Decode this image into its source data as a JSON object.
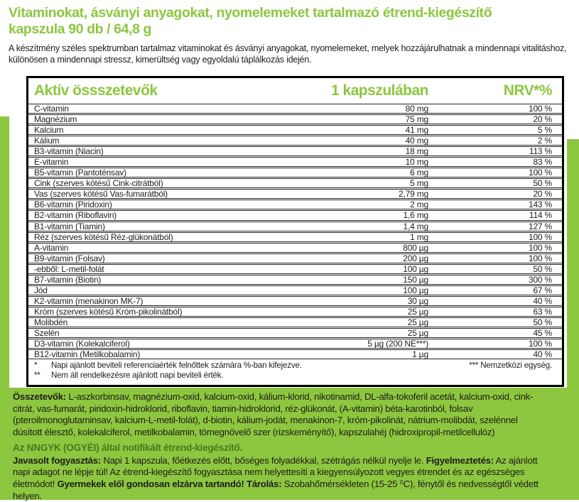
{
  "colors": {
    "green": "#8dc63f",
    "dark_green": "#47791f",
    "text": "#1d1d1b"
  },
  "header": {
    "title_line1": "Vitaminokat, ásványi anyagokat, nyomelemeket tartalmazó étrend-kiegészítő",
    "title_line2": "kapszula 90 db /  64,8 g",
    "description": "A készítmény széles spektrumban tartalmaz vitaminokat és ásványi anyagokat, nyomelemeket, melyek hozzájárulhatnak a mindennapi vitalitáshoz, különösen a mindennapi stressz, kimerültség vagy egyoldalú táplálkozás idején."
  },
  "table": {
    "col_ingredient": "Aktív össszetevők",
    "col_per_capsule": "1 kapszulában",
    "col_nrv": "NRV*%",
    "rows": [
      {
        "name": "C-vitamin",
        "amount": "80 mg",
        "nrv": "100 %"
      },
      {
        "name": "Magnézium",
        "amount": "75 mg",
        "nrv": "20 %"
      },
      {
        "name": "Kalcium",
        "amount": "41 mg",
        "nrv": "5 %"
      },
      {
        "name": "Kálium",
        "amount": "40 mg",
        "nrv": "2 %"
      },
      {
        "name": "B3-vitamin (Niacin)",
        "amount": "18 mg",
        "nrv": "113 %"
      },
      {
        "name": "E-vitamin",
        "amount": "10 mg",
        "nrv": "83 %"
      },
      {
        "name": "B5-vitamin (Pantoténsav)",
        "amount": "6 mg",
        "nrv": "100 %"
      },
      {
        "name": "Cink (szerves kötésű Cink-citrátból)",
        "amount": "5 mg",
        "nrv": "50 %"
      },
      {
        "name": "Vas (szerves kötésű Vas-fumarátból)",
        "amount": "2,79 mg",
        "nrv": "20 %"
      },
      {
        "name": "B6-vitamin (Piridoxin)",
        "amount": "2 mg",
        "nrv": "143 %"
      },
      {
        "name": "B2-vitamin (Riboflavin)",
        "amount": "1,6 mg",
        "nrv": "114 %"
      },
      {
        "name": "B1-vitamin (Tiamin)",
        "amount": "1,4 mg",
        "nrv": "127 %"
      },
      {
        "name": "Réz (szerves kötésű Réz-glükonátból)",
        "amount": "1 mg",
        "nrv": "100 %"
      },
      {
        "name": "A-vitamin",
        "amount": "800 µg",
        "nrv": "100 %"
      },
      {
        "name": "B9-vitamin (Folsav)",
        "amount": "200 µg",
        "nrv": "100 %"
      },
      {
        "name": "-ebből: L-metil-folát",
        "amount": "100 µg",
        "nrv": "50 %"
      },
      {
        "name": "B7-vitamin (Biotin)",
        "amount": "150 µg",
        "nrv": "300 %"
      },
      {
        "name": "Jód",
        "amount": "100 µg",
        "nrv": "67 %"
      },
      {
        "name": "K2-vitamin (menakinon MK-7)",
        "amount": "30 µg",
        "nrv": "40 %"
      },
      {
        "name": "Króm (szerves kötésű Króm-pikolinátból)",
        "amount": "25 µg",
        "nrv": "63 %"
      },
      {
        "name": "Molibdén",
        "amount": "25 µg",
        "nrv": "50 %"
      },
      {
        "name": "Szelén",
        "amount": "25 µg",
        "nrv": "45 %"
      },
      {
        "name": "D3-vitamin (Kolekalciferol)",
        "amount": "5 µg (200 NE***)",
        "nrv": "100 %"
      },
      {
        "name": "B12-vitamin (Metilkobalamin)",
        "amount": "1 µg",
        "nrv": "40 %"
      }
    ],
    "footnotes": {
      "f1_marker": "*",
      "f1_text": "Napi ajánlott beviteli referenciaérték felnőttek számára %-ban kifejezve.",
      "f2_marker": "**",
      "f2_text": "Nem áll rendelkezésre ajánlott napi beviteli érték.",
      "f3_text": "*** Nemzetközi egység."
    }
  },
  "footer": {
    "ingredients_label": "Összetevők:",
    "ingredients_text": " L-aszkorbinsav, magnézium-oxid, kalcium-oxid, kálium-klorid, nikotinamid, DL-alfa-tokoferil acetát, kalcium-oxid, cink-citrát, vas-fumarát, piridoxin-hidroklorid, riboflavin, tiamin-hidroklorid, réz-glükonát, (A-vitamin) béta-karotinból, folsav (pteroilmonoglutaminsav, kalcium-L-metil-folát), d-biotin, kálium-jodát, menakinon-7, króm-pikolinát, nátrium-molibdát, szelénnel dúsított élesztő, kolekalciferol, metilkobalamin, tömegnövelő szer (rizskeményítő), kapszulahéj (hidroxipropil-metilcellulóz)",
    "notification": "Az NNGYK (OGYÉI) által notifikált étrend-kiegészítő.",
    "usage_label": "Javasolt fogyasztás:",
    "usage_text": " Napi 1 kapszula, főétkezés előtt, bőséges folyadékkal, szétrágás nélkül nyelje le. ",
    "warning_label": "Figyelmeztetés:",
    "warning_text": " Az ajánlott napi adagot ne lépje túl! Az étrend-kiegészítő fogyasztása nem helyettesíti a kiegyensúlyozott vegyes étrendet és az egészséges életmódot! ",
    "children_label": "Gyermekek elől gondosan elzárva tartandó!",
    "storage_label": " Tárolás:",
    "storage_text": " Szobahőmérsékleten (15-25 ⁰C), fénytől és nedvességtől védett helyen."
  }
}
